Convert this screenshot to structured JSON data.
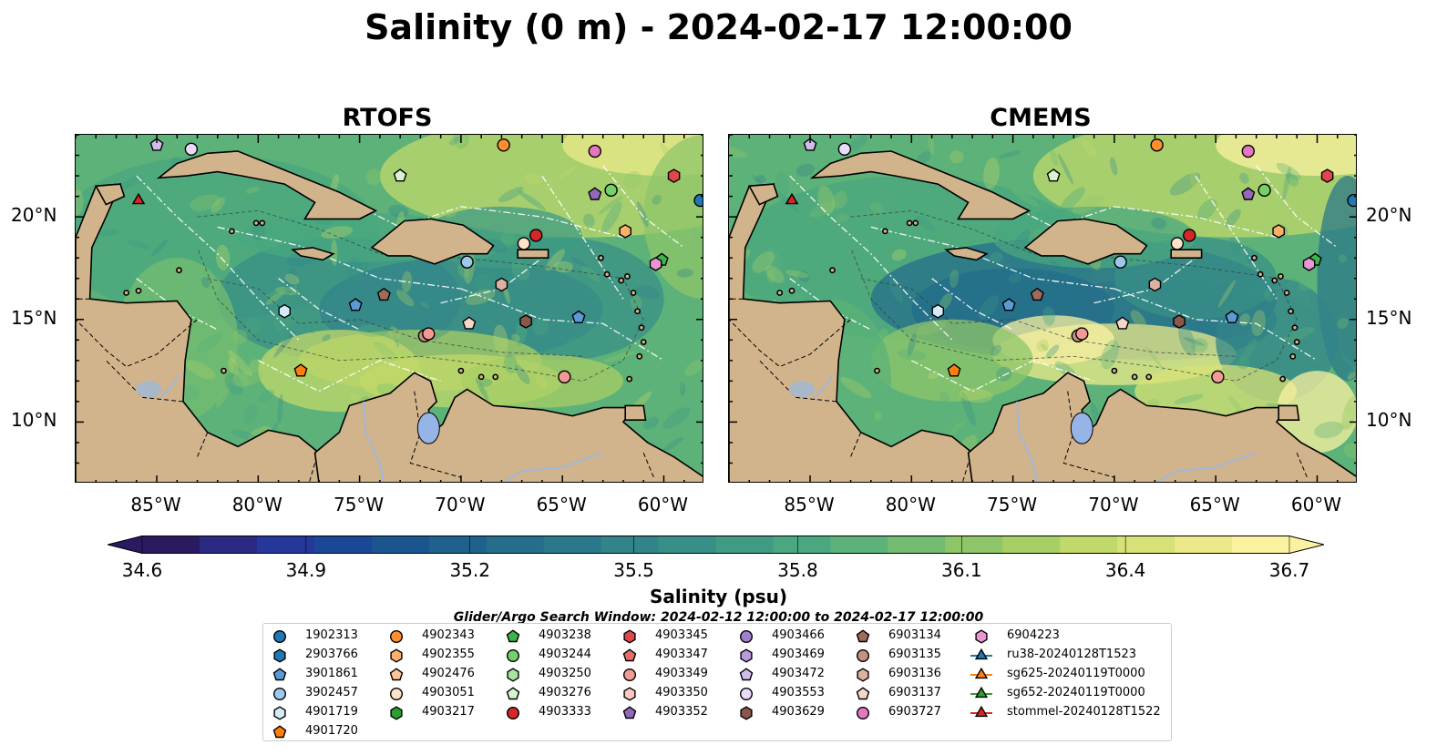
{
  "title": "Salinity (0 m) - 2024-02-17 12:00:00",
  "panels": [
    {
      "title": "RTOFS"
    },
    {
      "title": "CMEMS"
    }
  ],
  "axes": {
    "lon_ticks": [
      "85°W",
      "80°W",
      "75°W",
      "70°W",
      "65°W",
      "60°W"
    ],
    "lat_ticks": [
      "20°N",
      "15°N",
      "10°N"
    ],
    "lon_range": [
      -89,
      -58
    ],
    "lat_range": [
      7,
      24
    ]
  },
  "colorbar": {
    "label": "Salinity (psu)",
    "ticks": [
      "34.6",
      "34.9",
      "35.2",
      "35.5",
      "35.8",
      "36.1",
      "36.4",
      "36.7"
    ],
    "min": 34.6,
    "max": 36.7,
    "extend": "both",
    "colormap": "haline",
    "colors": [
      "#2a1a60",
      "#2b2a82",
      "#25379a",
      "#1b4797",
      "#1a5590",
      "#1e618c",
      "#246d8b",
      "#2b788a",
      "#318489",
      "#388f87",
      "#3f9b84",
      "#4aa77f",
      "#5cb278",
      "#74bc70",
      "#8ec569",
      "#a8ce66",
      "#c1d86a",
      "#d8e177",
      "#ebe98a",
      "#fbf2a0"
    ]
  },
  "search_window": "Glider/Argo Search Window: 2024-02-12 12:00:00 to 2024-02-17 12:00:00",
  "colors": {
    "land": "#d2b48c",
    "lake": "#96b4e6",
    "river": "#a0b8d8",
    "ocean_deep": "#2a1a60"
  },
  "legend": [
    {
      "id": "1902313",
      "marker": "circle",
      "color": "#1f77b4"
    },
    {
      "id": "2903766",
      "marker": "hexagon",
      "color": "#1f77b4"
    },
    {
      "id": "3901861",
      "marker": "pentagon",
      "color": "#5b9bd5"
    },
    {
      "id": "3902457",
      "marker": "circle",
      "color": "#9cc8ea"
    },
    {
      "id": "4901719",
      "marker": "hexagon",
      "color": "#d6ebf8"
    },
    {
      "id": "4901720",
      "marker": "pentagon",
      "color": "#ff7f0e"
    },
    {
      "id": "4902343",
      "marker": "circle",
      "color": "#ff8f2e"
    },
    {
      "id": "4902355",
      "marker": "hexagon",
      "color": "#fdb06a"
    },
    {
      "id": "4902476",
      "marker": "pentagon",
      "color": "#fcc59a"
    },
    {
      "id": "4903051",
      "marker": "circle",
      "color": "#fee3c8"
    },
    {
      "id": "4903217",
      "marker": "hexagon",
      "color": "#2ca02c"
    },
    {
      "id": "4903238",
      "marker": "pentagon",
      "color": "#3cb44b"
    },
    {
      "id": "4903244",
      "marker": "circle",
      "color": "#74d069"
    },
    {
      "id": "4903250",
      "marker": "hexagon",
      "color": "#a9e3a0"
    },
    {
      "id": "4903276",
      "marker": "pentagon",
      "color": "#d8f3d0"
    },
    {
      "id": "4903333",
      "marker": "circle",
      "color": "#d62728"
    },
    {
      "id": "4903345",
      "marker": "hexagon",
      "color": "#e0474a"
    },
    {
      "id": "4903347",
      "marker": "pentagon",
      "color": "#ea6b6b"
    },
    {
      "id": "4903349",
      "marker": "circle",
      "color": "#f39a95"
    },
    {
      "id": "4903350",
      "marker": "hexagon",
      "color": "#fbc8c2"
    },
    {
      "id": "4903352",
      "marker": "pentagon",
      "color": "#9467bd"
    },
    {
      "id": "4903466",
      "marker": "circle",
      "color": "#a27fcc"
    },
    {
      "id": "4903469",
      "marker": "hexagon",
      "color": "#b99adb"
    },
    {
      "id": "4903472",
      "marker": "pentagon",
      "color": "#d2bcec"
    },
    {
      "id": "4903553",
      "marker": "circle",
      "color": "#eadcf8"
    },
    {
      "id": "4903629",
      "marker": "hexagon",
      "color": "#8c564b"
    },
    {
      "id": "6903134",
      "marker": "pentagon",
      "color": "#a06a5c"
    },
    {
      "id": "6903135",
      "marker": "circle",
      "color": "#c49182"
    },
    {
      "id": "6903136",
      "marker": "hexagon",
      "color": "#ddb1a2"
    },
    {
      "id": "6903137",
      "marker": "pentagon",
      "color": "#f5d7ca"
    },
    {
      "id": "6903727",
      "marker": "circle",
      "color": "#e377c2"
    },
    {
      "id": "6904223",
      "marker": "hexagon",
      "color": "#eb96d2"
    },
    {
      "id": "ru38-20240128T1523",
      "marker": "triangle",
      "color": "#1f77b4",
      "line": true
    },
    {
      "id": "sg625-20240119T0000",
      "marker": "triangle",
      "color": "#ff7f0e",
      "line": true
    },
    {
      "id": "sg652-20240119T0000",
      "marker": "triangle",
      "color": "#2ca02c",
      "line": true
    },
    {
      "id": "stommel-20240128T1522",
      "marker": "triangle",
      "color": "#d62728",
      "line": true
    }
  ],
  "observations": [
    {
      "id": "4903472",
      "lon": -85.0,
      "lat": 23.5
    },
    {
      "id": "4903553",
      "lon": -83.3,
      "lat": 23.3
    },
    {
      "id": "4902343",
      "lon": -67.9,
      "lat": 23.5
    },
    {
      "id": "6903727",
      "lon": -63.4,
      "lat": 23.2
    },
    {
      "id": "4903345",
      "lon": -59.5,
      "lat": 22.0
    },
    {
      "id": "4903276",
      "lon": -73.0,
      "lat": 22.0
    },
    {
      "id": "4903244",
      "lon": -62.6,
      "lat": 21.3
    },
    {
      "id": "4903352",
      "lon": -63.4,
      "lat": 21.1
    },
    {
      "id": "1902313",
      "lon": -58.2,
      "lat": 20.8
    },
    {
      "id": "stommel-20240128T1522",
      "lon": -85.9,
      "lat": 20.8
    },
    {
      "id": "4902355",
      "lon": -61.9,
      "lat": 19.3
    },
    {
      "id": "4903333",
      "lon": -66.3,
      "lat": 19.1
    },
    {
      "id": "4903051",
      "lon": -66.9,
      "lat": 18.7
    },
    {
      "id": "4903238",
      "lon": -60.1,
      "lat": 17.9
    },
    {
      "id": "6904223",
      "lon": -60.4,
      "lat": 17.7
    },
    {
      "id": "3902457",
      "lon": -69.7,
      "lat": 17.8
    },
    {
      "id": "6903136",
      "lon": -68.0,
      "lat": 16.7
    },
    {
      "id": "6903134",
      "lon": -73.8,
      "lat": 16.2
    },
    {
      "id": "3901861",
      "lon": -75.2,
      "lat": 15.7
    },
    {
      "id": "4901719",
      "lon": -78.7,
      "lat": 15.4
    },
    {
      "id": "3901861",
      "lon": -64.2,
      "lat": 15.1
    },
    {
      "id": "4903629",
      "lon": -66.8,
      "lat": 14.9
    },
    {
      "id": "6903137",
      "lon": -69.6,
      "lat": 14.8
    },
    {
      "id": "6903135",
      "lon": -71.8,
      "lat": 14.2
    },
    {
      "id": "4903349",
      "lon": -71.6,
      "lat": 14.3
    },
    {
      "id": "4901720",
      "lon": -77.9,
      "lat": 12.5
    },
    {
      "id": "4903349",
      "lon": -64.9,
      "lat": 12.2
    }
  ]
}
